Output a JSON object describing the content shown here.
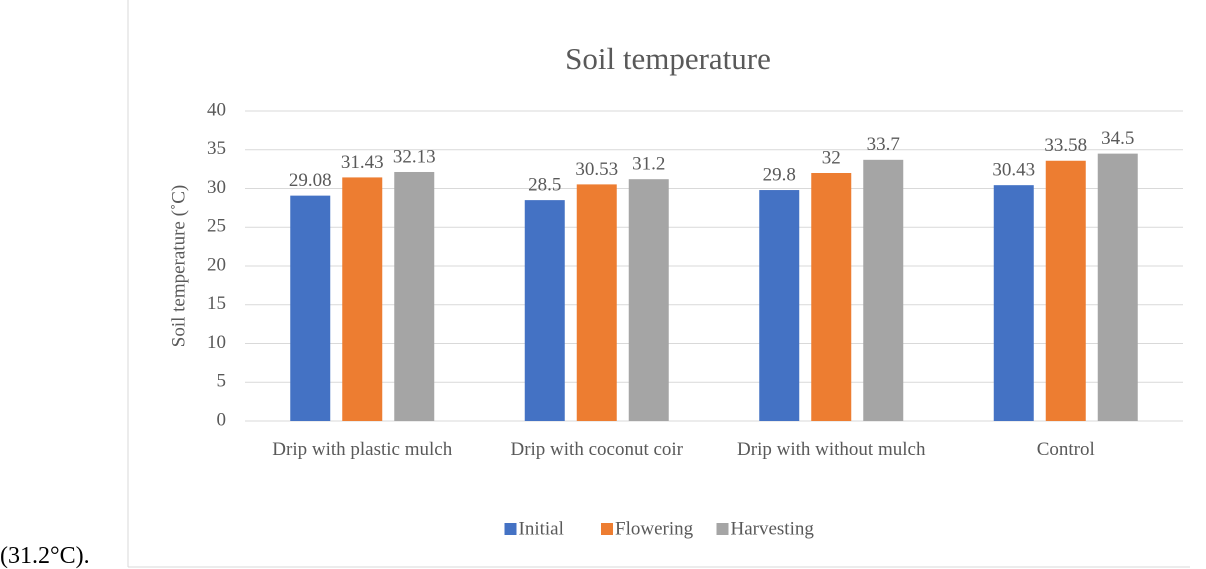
{
  "text": "(31.2°C).",
  "chart_data": {
    "type": "bar",
    "title": "Soil temperature",
    "y_label": "Soil temperature (˚C)",
    "categories": [
      "Drip with plastic mulch",
      "Drip with coconut coir",
      "Drip with without mulch",
      "Control"
    ],
    "series": [
      {
        "name": "Initial",
        "color": "#4472c4",
        "values": [
          29.08,
          28.5,
          29.8,
          30.43
        ]
      },
      {
        "name": "Flowering",
        "color": "#ed7d31",
        "values": [
          31.43,
          30.53,
          32,
          33.58
        ]
      },
      {
        "name": "Harvesting",
        "color": "#a5a5a5",
        "values": [
          32.13,
          31.2,
          33.7,
          34.5
        ]
      }
    ],
    "ylim": [
      0,
      40
    ],
    "yticks": [
      0,
      5,
      10,
      15,
      20,
      25,
      30,
      35,
      40
    ],
    "grid": true,
    "legend": "bottom"
  }
}
